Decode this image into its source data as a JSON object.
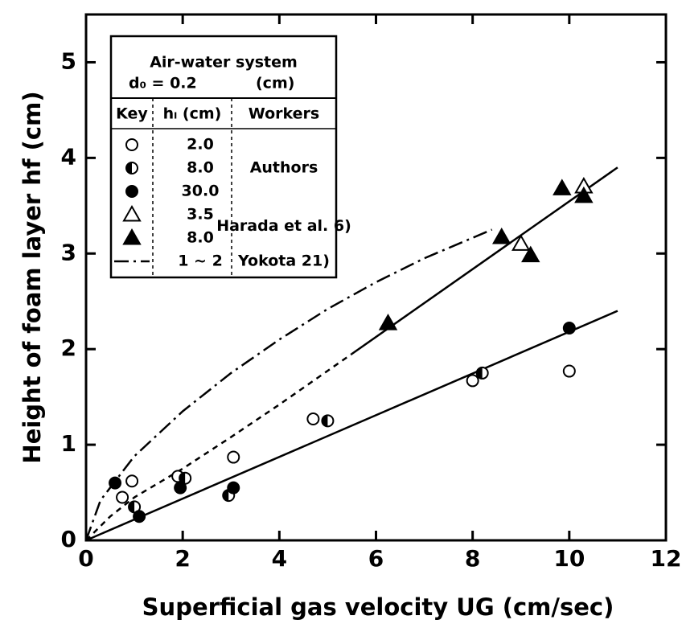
{
  "chart_data": {
    "type": "scatter",
    "xlabel": "Superficial gas velocity UG (cm/sec)",
    "ylabel": "Height of foam layer hf (cm)",
    "xlim": [
      0,
      12
    ],
    "ylim": [
      0,
      5.5
    ],
    "xticks": [
      0,
      2,
      4,
      6,
      8,
      10,
      12
    ],
    "yticks": [
      0,
      1,
      2,
      3,
      4,
      5
    ],
    "color": "#000000",
    "legend": {
      "title": "Air-water system",
      "line2_left": "d₀ = 0.2",
      "line2_right": "(cm)",
      "headers": [
        "Key",
        "hₗ (cm)",
        "Workers"
      ],
      "workers": [
        "Authors",
        "Harada et al. 6)",
        "Yokota 21)"
      ]
    },
    "series": [
      {
        "name": "2.0",
        "marker": "open-circle",
        "x": [
          0.75,
          0.95,
          1.9,
          3.05,
          4.7,
          8.0,
          10.0
        ],
        "y": [
          0.45,
          0.62,
          0.67,
          0.87,
          1.27,
          1.67,
          1.77
        ]
      },
      {
        "name": "8.0",
        "marker": "half-circle",
        "x": [
          1.0,
          2.05,
          2.95,
          5.0,
          8.2
        ],
        "y": [
          0.35,
          0.65,
          0.47,
          1.25,
          1.75
        ]
      },
      {
        "name": "30.0",
        "marker": "filled-circle",
        "x": [
          0.6,
          1.1,
          1.95,
          3.05,
          10.0
        ],
        "y": [
          0.6,
          0.25,
          0.55,
          0.55,
          2.22
        ]
      },
      {
        "name": "3.5",
        "marker": "open-triangle",
        "x": [
          9.0,
          10.3
        ],
        "y": [
          3.1,
          3.7
        ]
      },
      {
        "name": "8.0",
        "marker": "filled-triangle",
        "x": [
          6.25,
          8.6,
          9.2,
          9.85,
          10.3
        ],
        "y": [
          2.27,
          3.17,
          2.98,
          3.68,
          3.6
        ]
      },
      {
        "name": "1 ~ 2",
        "marker": "dash-dot",
        "x": [
          0,
          0.3,
          1,
          2,
          3,
          4,
          5,
          6,
          7,
          8.4
        ],
        "y": [
          0,
          0.42,
          0.88,
          1.35,
          1.75,
          2.1,
          2.42,
          2.7,
          2.95,
          3.25
        ]
      }
    ],
    "fit_lines": [
      {
        "style": "solid",
        "x": [
          0,
          11
        ],
        "y": [
          0,
          2.4
        ]
      },
      {
        "style": "solid",
        "x": [
          5.5,
          11
        ],
        "y": [
          1.95,
          3.9
        ]
      },
      {
        "style": "dashed",
        "x": [
          0,
          0.5,
          1,
          2,
          3,
          4,
          5.5
        ],
        "y": [
          0,
          0.25,
          0.45,
          0.75,
          1.08,
          1.42,
          1.95
        ]
      }
    ]
  }
}
